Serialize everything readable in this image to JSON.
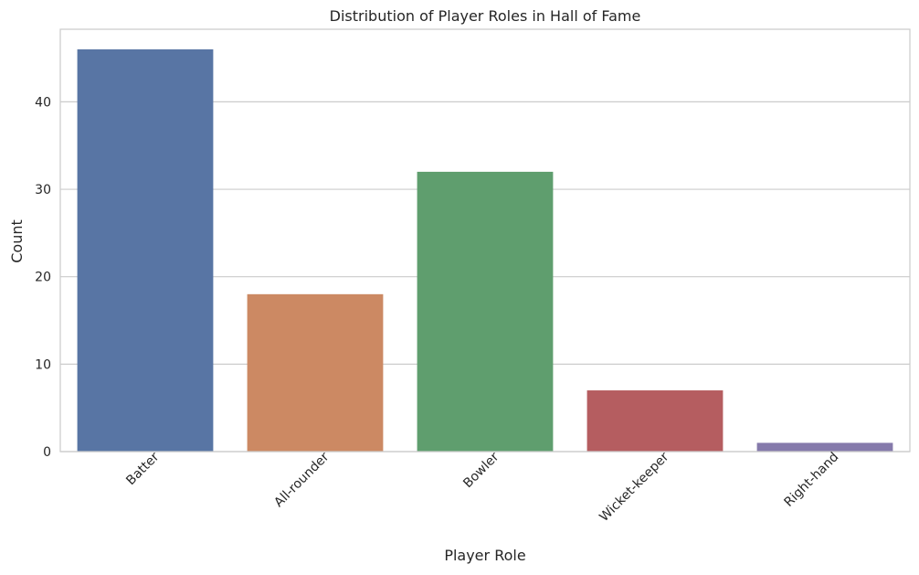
{
  "chart_data": {
    "type": "bar",
    "title": "Distribution of Player Roles in Hall of Fame",
    "xlabel": "Player Role",
    "ylabel": "Count",
    "categories": [
      "Batter",
      "All-rounder",
      "Bowler",
      "Wicket-keeper",
      "Right-hand"
    ],
    "values": [
      46,
      18,
      32,
      7,
      1
    ],
    "colors": [
      "#5875a4",
      "#cc8963",
      "#5f9e6e",
      "#b55d60",
      "#857aab"
    ],
    "ylim": [
      0,
      48.3
    ],
    "yticks": [
      0,
      10,
      20,
      30,
      40
    ],
    "grid": true,
    "grid_axis": "y",
    "xtick_rotation": 45
  }
}
